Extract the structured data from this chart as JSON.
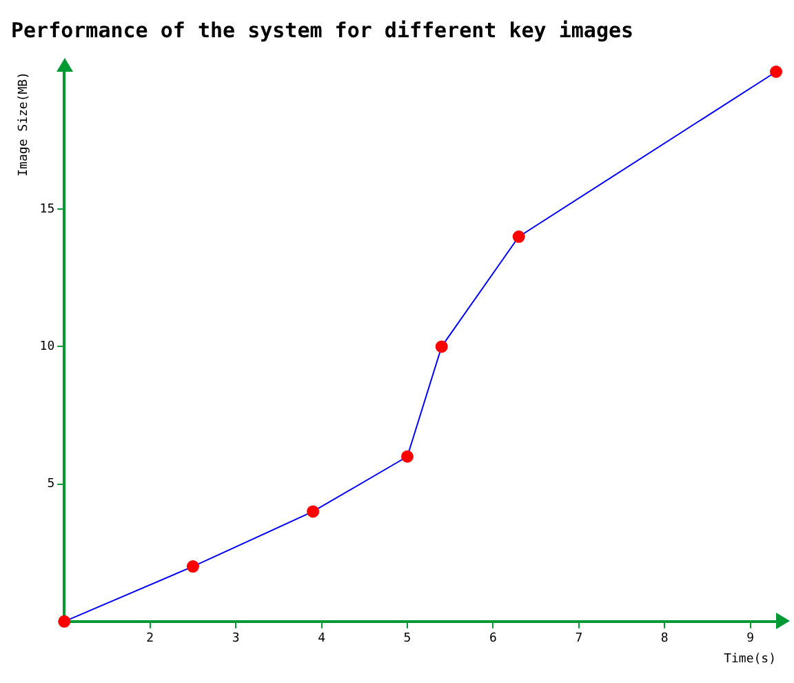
{
  "chart_data": {
    "type": "line",
    "title": "Performance of the system for different key images",
    "xlabel": "Time(s)",
    "ylabel": "Image Size(MB)",
    "x": [
      1,
      2.5,
      3.9,
      5,
      5.4,
      6.3,
      9.3
    ],
    "series": [
      {
        "color": "#0000ff",
        "values": [
          0,
          2,
          4,
          6,
          10,
          14,
          20
        ]
      }
    ],
    "marker": "circle",
    "xlim": [
      1,
      9.3
    ],
    "xticks": [
      2,
      3,
      4,
      5,
      6,
      7,
      8,
      9
    ],
    "ylim": [
      0,
      20
    ],
    "yticks": [
      5,
      10,
      15
    ],
    "grid": false,
    "legend": false
  }
}
